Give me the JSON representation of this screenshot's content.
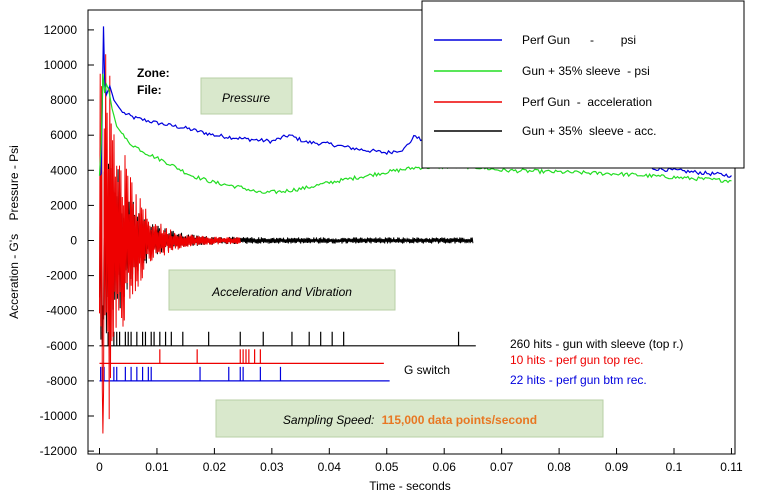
{
  "chart_data": {
    "type": "line",
    "title": "",
    "xlabel": "Time - seconds",
    "ylabel": "Acceration - G's    Pressure - Psi",
    "xlim": [
      -0.001,
      0.11
    ],
    "ylim": [
      -12000,
      13000
    ],
    "x_ticks": [
      "0",
      "0.01",
      "0.02",
      "0.03",
      "0.04",
      "0.05",
      "0.06",
      "0.07",
      "0.08",
      "0.09",
      "0.1",
      "0.11"
    ],
    "y_ticks": [
      "12000",
      "10000",
      "8000",
      "6000",
      "4000",
      "2000",
      "0",
      "-2000",
      "-4000",
      "-6000",
      "-8000",
      "-10000",
      "-12000"
    ],
    "grid": false,
    "legend_position": "top-right",
    "colors": {
      "blue": "#0000dd",
      "green": "#22dd22",
      "red": "#ee0000",
      "black": "#000000",
      "orange": "#e87722",
      "box_fill": "#d9e8cc",
      "box_border": "#b8cfa6"
    },
    "series": [
      {
        "name": "Perf Gun      -        psi",
        "color": "#0000dd",
        "x": [
          0,
          0.0003,
          0.0005,
          0.0007,
          0.0009,
          0.0012,
          0.0018,
          0.0025,
          0.004,
          0.006,
          0.01,
          0.015,
          0.02,
          0.025,
          0.03,
          0.033,
          0.036,
          0.04,
          0.045,
          0.05,
          0.053,
          0.055,
          0.058,
          0.062,
          0.07,
          0.08,
          0.09,
          0.1,
          0.11
        ],
        "y": [
          3700,
          3800,
          8000,
          12200,
          9000,
          8300,
          8800,
          8000,
          7300,
          7000,
          6700,
          6400,
          6000,
          5800,
          5650,
          6000,
          5600,
          5500,
          5200,
          5000,
          5200,
          6000,
          5100,
          4900,
          4700,
          4500,
          4300,
          4000,
          3700
        ]
      },
      {
        "name": "Gun + 35% sleeve  - psi",
        "color": "#22dd22",
        "x": [
          0,
          0.0003,
          0.0006,
          0.0009,
          0.0012,
          0.0016,
          0.0022,
          0.003,
          0.005,
          0.008,
          0.012,
          0.016,
          0.02,
          0.025,
          0.028,
          0.032,
          0.036,
          0.04,
          0.045,
          0.05,
          0.055,
          0.06,
          0.065,
          0.07,
          0.08,
          0.09,
          0.1,
          0.11
        ],
        "y": [
          3700,
          5500,
          9500,
          8400,
          8900,
          8600,
          7500,
          6500,
          5600,
          5000,
          4400,
          3700,
          3300,
          3000,
          2700,
          2800,
          3000,
          3300,
          3600,
          3900,
          4150,
          4200,
          4200,
          4000,
          3900,
          3800,
          3600,
          3400
        ]
      }
    ],
    "vibration_traces": [
      {
        "name": "Perf Gun  -  acceleration",
        "color": "#ee0000",
        "x_range": [
          0,
          0.0245
        ],
        "peak": [
          -11000,
          8800
        ]
      },
      {
        "name": "Gun + 35%  sleeve - acc.",
        "color": "#000000",
        "x_range": [
          0,
          0.065
        ],
        "peak": [
          -3700,
          6500
        ]
      }
    ],
    "hit_rows": [
      {
        "label_count": "260 hits - gun with sleeve (top r.)",
        "color": "#000000",
        "baseline": -6000,
        "height": 800,
        "x_end": 0.0655,
        "hits": [
          0.0005,
          0.0015,
          0.0025,
          0.003,
          0.0035,
          0.0045,
          0.005,
          0.0055,
          0.0065,
          0.0075,
          0.008,
          0.009,
          0.0095,
          0.0105,
          0.0115,
          0.0125,
          0.0145,
          0.019,
          0.0245,
          0.0285,
          0.0335,
          0.0365,
          0.0385,
          0.0405,
          0.0425,
          0.0625
        ]
      },
      {
        "label_count": "10   hits -  perf gun top rec.",
        "color": "#ee0000",
        "baseline": -7000,
        "height": 800,
        "x_end": 0.0495,
        "hits": [
          0.0105,
          0.017,
          0.0245,
          0.025,
          0.0255,
          0.026,
          0.027,
          0.028
        ]
      },
      {
        "label_count": "22  hits - perf gun btm rec.",
        "color": "#0000dd",
        "baseline": -8000,
        "height": 800,
        "x_end": 0.0505,
        "hits": [
          0.0002,
          0.0005,
          0.0008,
          0.0025,
          0.003,
          0.0045,
          0.0055,
          0.0065,
          0.0075,
          0.0085,
          0.009,
          0.0175,
          0.0225,
          0.0245,
          0.025,
          0.028,
          0.0315
        ]
      }
    ],
    "annotations": {
      "zone": "Zone:",
      "file": "File:",
      "pressure": "Pressure",
      "accel": "Acceleration and Vibration",
      "g_switch": "G switch",
      "sampling_label": "Sampling Speed:",
      "sampling_value": "115,000 data points/second"
    }
  }
}
